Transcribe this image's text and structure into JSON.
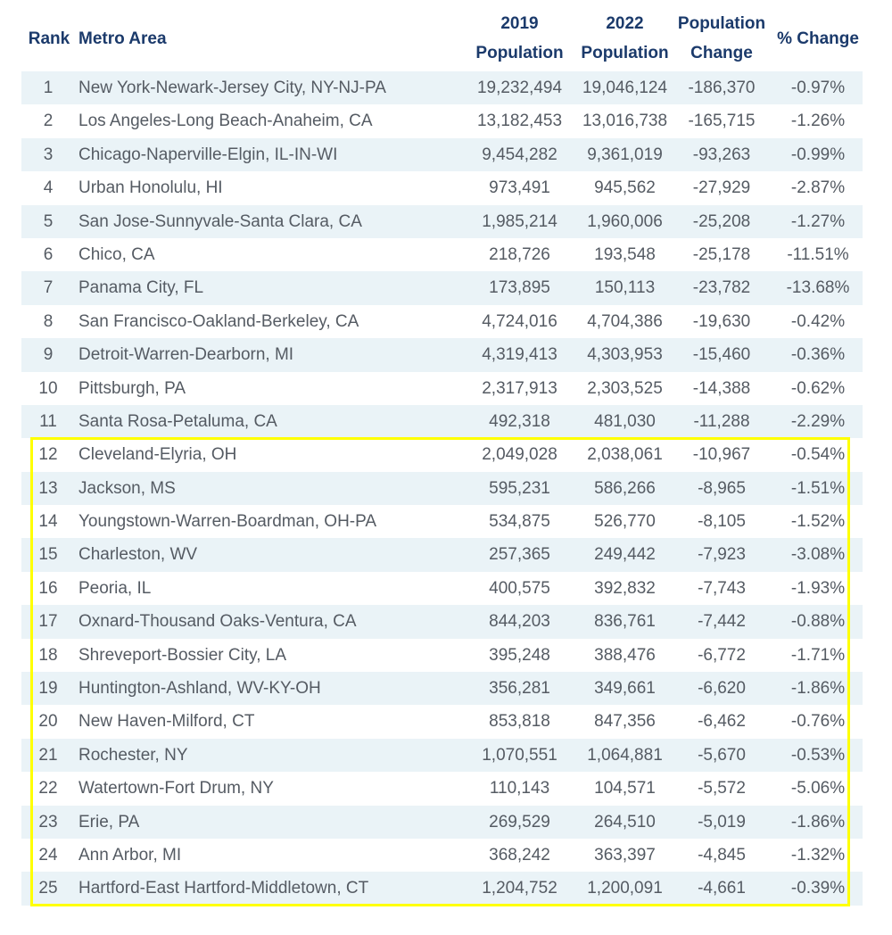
{
  "headers": {
    "rank": "Rank",
    "metro": "Metro Area",
    "pop2019_line1": "2019",
    "pop2019_line2": "Population",
    "pop2022_line1": "2022",
    "pop2022_line2": "Population",
    "change_line1": "Population",
    "change_line2": "Change",
    "pct": "% Change"
  },
  "colors": {
    "header_text": "#1b3a6b",
    "stripe": "#eaf3f7",
    "highlight_border": "#ffff00"
  },
  "rows": [
    {
      "rank": "1",
      "metro": "New York-Newark-Jersey City, NY-NJ-PA",
      "pop2019": "19,232,494",
      "pop2022": "19,046,124",
      "change": "-186,370",
      "pct": "-0.97%"
    },
    {
      "rank": "2",
      "metro": "Los Angeles-Long Beach-Anaheim, CA",
      "pop2019": "13,182,453",
      "pop2022": "13,016,738",
      "change": "-165,715",
      "pct": "-1.26%"
    },
    {
      "rank": "3",
      "metro": "Chicago-Naperville-Elgin, IL-IN-WI",
      "pop2019": "9,454,282",
      "pop2022": "9,361,019",
      "change": "-93,263",
      "pct": "-0.99%"
    },
    {
      "rank": "4",
      "metro": "Urban Honolulu, HI",
      "pop2019": "973,491",
      "pop2022": "945,562",
      "change": "-27,929",
      "pct": "-2.87%"
    },
    {
      "rank": "5",
      "metro": "San Jose-Sunnyvale-Santa Clara, CA",
      "pop2019": "1,985,214",
      "pop2022": "1,960,006",
      "change": "-25,208",
      "pct": "-1.27%"
    },
    {
      "rank": "6",
      "metro": "Chico, CA",
      "pop2019": "218,726",
      "pop2022": "193,548",
      "change": "-25,178",
      "pct": "-11.51%"
    },
    {
      "rank": "7",
      "metro": "Panama City, FL",
      "pop2019": "173,895",
      "pop2022": "150,113",
      "change": "-23,782",
      "pct": "-13.68%"
    },
    {
      "rank": "8",
      "metro": "San Francisco-Oakland-Berkeley, CA",
      "pop2019": "4,724,016",
      "pop2022": "4,704,386",
      "change": "-19,630",
      "pct": "-0.42%"
    },
    {
      "rank": "9",
      "metro": "Detroit-Warren-Dearborn, MI",
      "pop2019": "4,319,413",
      "pop2022": "4,303,953",
      "change": "-15,460",
      "pct": "-0.36%"
    },
    {
      "rank": "10",
      "metro": "Pittsburgh, PA",
      "pop2019": "2,317,913",
      "pop2022": "2,303,525",
      "change": "-14,388",
      "pct": "-0.62%"
    },
    {
      "rank": "11",
      "metro": "Santa Rosa-Petaluma, CA",
      "pop2019": "492,318",
      "pop2022": "481,030",
      "change": "-11,288",
      "pct": "-2.29%"
    },
    {
      "rank": "12",
      "metro": "Cleveland-Elyria, OH",
      "pop2019": "2,049,028",
      "pop2022": "2,038,061",
      "change": "-10,967",
      "pct": "-0.54%"
    },
    {
      "rank": "13",
      "metro": "Jackson, MS",
      "pop2019": "595,231",
      "pop2022": "586,266",
      "change": "-8,965",
      "pct": "-1.51%"
    },
    {
      "rank": "14",
      "metro": "Youngstown-Warren-Boardman, OH-PA",
      "pop2019": "534,875",
      "pop2022": "526,770",
      "change": "-8,105",
      "pct": "-1.52%"
    },
    {
      "rank": "15",
      "metro": "Charleston, WV",
      "pop2019": "257,365",
      "pop2022": "249,442",
      "change": "-7,923",
      "pct": "-3.08%"
    },
    {
      "rank": "16",
      "metro": "Peoria, IL",
      "pop2019": "400,575",
      "pop2022": "392,832",
      "change": "-7,743",
      "pct": "-1.93%"
    },
    {
      "rank": "17",
      "metro": "Oxnard-Thousand Oaks-Ventura, CA",
      "pop2019": "844,203",
      "pop2022": "836,761",
      "change": "-7,442",
      "pct": "-0.88%"
    },
    {
      "rank": "18",
      "metro": "Shreveport-Bossier City, LA",
      "pop2019": "395,248",
      "pop2022": "388,476",
      "change": "-6,772",
      "pct": "-1.71%"
    },
    {
      "rank": "19",
      "metro": "Huntington-Ashland, WV-KY-OH",
      "pop2019": "356,281",
      "pop2022": "349,661",
      "change": "-6,620",
      "pct": "-1.86%"
    },
    {
      "rank": "20",
      "metro": "New Haven-Milford, CT",
      "pop2019": "853,818",
      "pop2022": "847,356",
      "change": "-6,462",
      "pct": "-0.76%"
    },
    {
      "rank": "21",
      "metro": "Rochester, NY",
      "pop2019": "1,070,551",
      "pop2022": "1,064,881",
      "change": "-5,670",
      "pct": "-0.53%"
    },
    {
      "rank": "22",
      "metro": "Watertown-Fort Drum, NY",
      "pop2019": "110,143",
      "pop2022": "104,571",
      "change": "-5,572",
      "pct": "-5.06%"
    },
    {
      "rank": "23",
      "metro": "Erie, PA",
      "pop2019": "269,529",
      "pop2022": "264,510",
      "change": "-5,019",
      "pct": "-1.86%"
    },
    {
      "rank": "24",
      "metro": "Ann Arbor, MI",
      "pop2019": "368,242",
      "pop2022": "363,397",
      "change": "-4,845",
      "pct": "-1.32%"
    },
    {
      "rank": "25",
      "metro": "Hartford-East Hartford-Middletown, CT",
      "pop2019": "1,204,752",
      "pop2022": "1,200,091",
      "change": "-4,661",
      "pct": "-0.39%"
    }
  ]
}
